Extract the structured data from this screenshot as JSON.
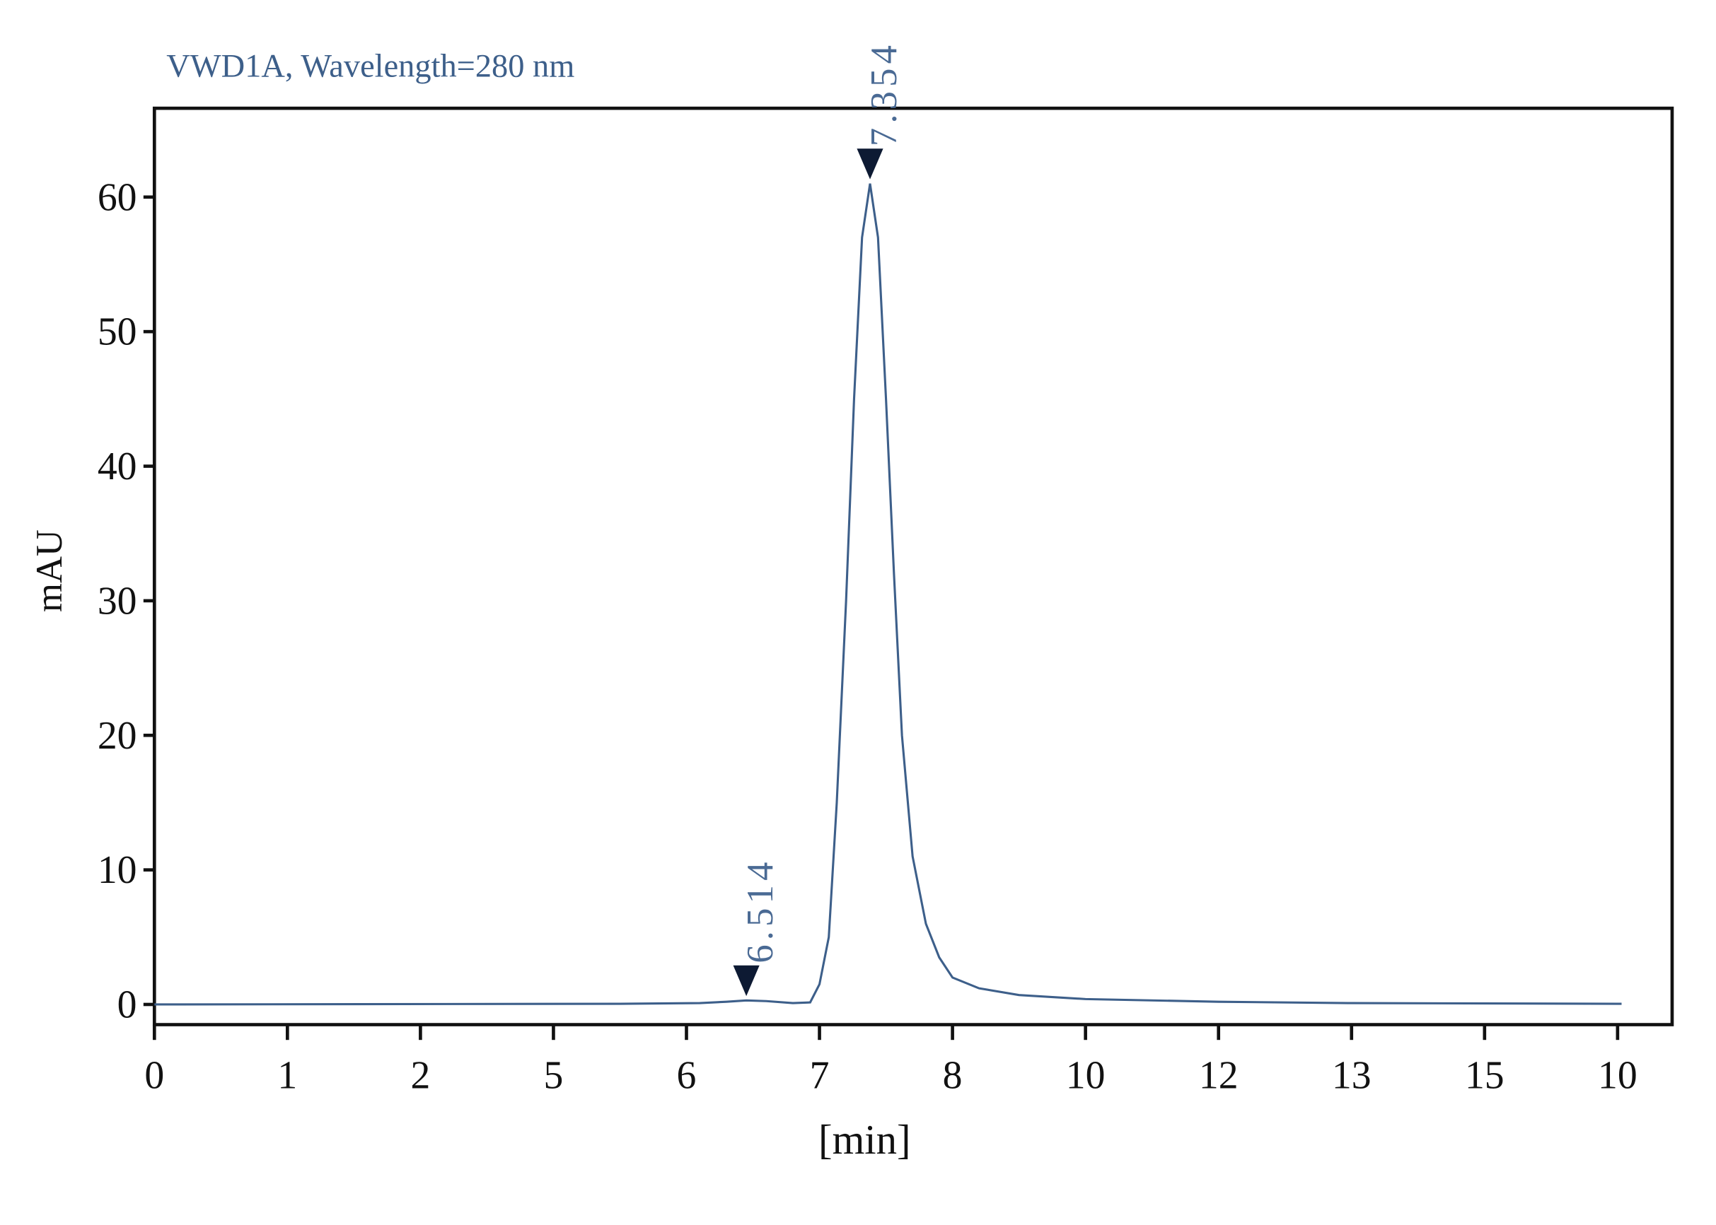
{
  "chart_data": {
    "type": "line",
    "title": "VWD1A, Wavelength=280 nm",
    "xlabel": "[min]",
    "ylabel": "mAU",
    "color": "#3d5f8a",
    "x": [
      0,
      3.5,
      4.1,
      4.3,
      4.45,
      4.6,
      4.8,
      4.93,
      5.0,
      5.07,
      5.13,
      5.2,
      5.26,
      5.32,
      5.38,
      5.44,
      5.5,
      5.56,
      5.62,
      5.7,
      5.8,
      5.9,
      6.0,
      6.2,
      6.5,
      7.0,
      8.0,
      9.0,
      11.03
    ],
    "values": [
      0,
      0.05,
      0.1,
      0.2,
      0.3,
      0.25,
      0.1,
      0.15,
      1.5,
      5,
      15,
      30,
      45,
      57,
      61,
      57,
      45,
      32,
      20,
      11,
      6,
      3.5,
      2,
      1.2,
      0.7,
      0.4,
      0.2,
      0.1,
      0.05
    ],
    "peaks": [
      {
        "label": "6.514",
        "x": 4.45,
        "y": 0.3
      },
      {
        "label": "7.354",
        "x": 5.38,
        "y": 61
      }
    ],
    "xlim": [
      0,
      11.41
    ],
    "xticks": [
      {
        "value": 0,
        "label": "0"
      },
      {
        "value": 1,
        "label": "1"
      },
      {
        "value": 2,
        "label": "2"
      },
      {
        "value": 3,
        "label": "5"
      },
      {
        "value": 4,
        "label": "6"
      },
      {
        "value": 5,
        "label": "7"
      },
      {
        "value": 6,
        "label": "8"
      },
      {
        "value": 7,
        "label": "10"
      },
      {
        "value": 8,
        "label": "12"
      },
      {
        "value": 9,
        "label": "13"
      },
      {
        "value": 10,
        "label": "15"
      },
      {
        "value": 11,
        "label": "10"
      }
    ],
    "ylim": [
      -1.5,
      66.6
    ],
    "yticks": [
      0,
      10,
      20,
      30,
      40,
      50,
      60
    ]
  }
}
